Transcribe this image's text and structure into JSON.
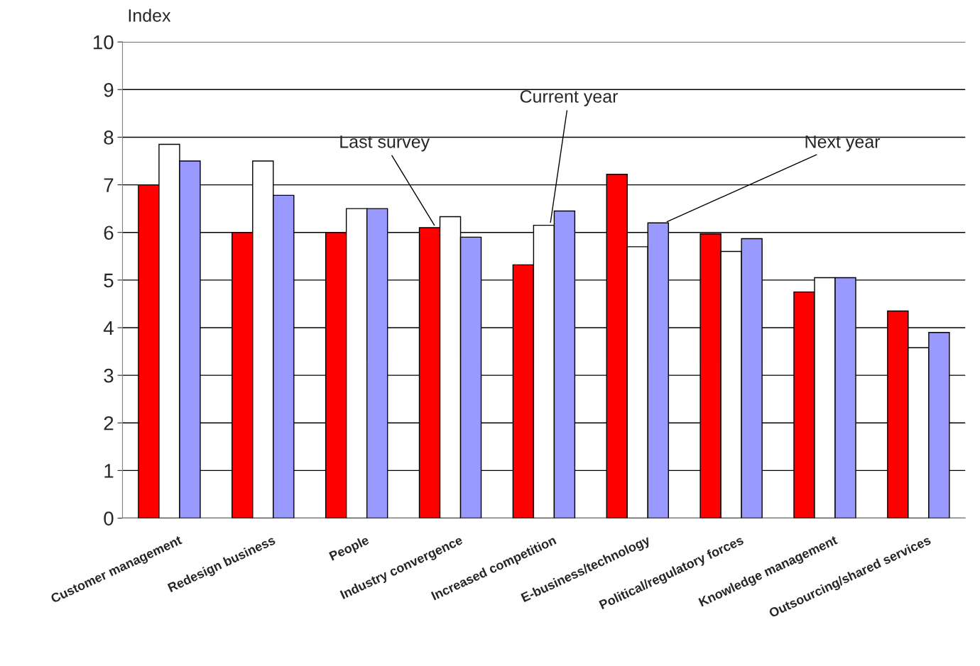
{
  "chart_data": {
    "type": "bar",
    "ylabel": "Index",
    "categories": [
      "Customer management",
      "Redesign business",
      "People",
      "Industry convergence",
      "Increased competition",
      "E-business/technology",
      "Political/regulatory forces",
      "Knowledge management",
      "Outsourcing/shared services"
    ],
    "series": [
      {
        "name": "Last survey",
        "color": "#ff0000",
        "values": [
          7.0,
          6.0,
          6.0,
          6.1,
          5.32,
          7.22,
          5.97,
          4.75,
          4.35
        ]
      },
      {
        "name": "Current year",
        "color": "#ffffff",
        "values": [
          7.85,
          7.5,
          6.5,
          6.33,
          6.15,
          5.7,
          5.6,
          5.05,
          3.58
        ]
      },
      {
        "name": "Next year",
        "color": "#9999ff",
        "values": [
          7.5,
          6.78,
          6.5,
          5.9,
          6.45,
          6.2,
          5.87,
          5.05,
          3.9
        ]
      }
    ],
    "ylim": [
      0,
      10
    ],
    "yticks": [
      0,
      1,
      2,
      3,
      4,
      5,
      6,
      7,
      8,
      9,
      10
    ],
    "grid": "y",
    "legend": false
  }
}
